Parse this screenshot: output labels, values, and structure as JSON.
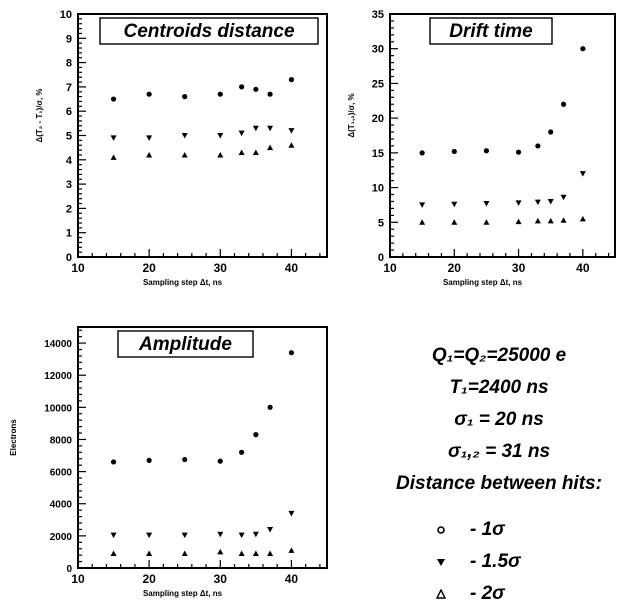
{
  "chart_data": [
    {
      "type": "scatter",
      "title": "Centroids distance",
      "xlabel": "Sampling step Δt, ns",
      "ylabel": "Δ(T₂ - T₁)/σ, %",
      "xlim": [
        10,
        45
      ],
      "ylim": [
        0,
        10
      ],
      "xticks": [
        "10",
        "20",
        "30",
        "40"
      ],
      "yticks": [
        "0",
        "1",
        "2",
        "3",
        "4",
        "5",
        "6",
        "7",
        "8",
        "9",
        "10"
      ],
      "series": [
        {
          "x": [
            15,
            20,
            25,
            30,
            33,
            35,
            37,
            40
          ],
          "y": [
            6.5,
            6.7,
            6.6,
            6.7,
            7.0,
            6.9,
            6.7,
            7.3
          ]
        },
        {
          "x": [
            15,
            20,
            25,
            30,
            33,
            35,
            37,
            40
          ],
          "y": [
            4.9,
            4.9,
            5.0,
            5.0,
            5.1,
            5.3,
            5.3,
            5.2
          ]
        },
        {
          "x": [
            15,
            20,
            25,
            30,
            33,
            35,
            37,
            40
          ],
          "y": [
            4.1,
            4.2,
            4.2,
            4.2,
            4.3,
            4.3,
            4.5,
            4.6
          ]
        }
      ]
    },
    {
      "type": "scatter",
      "title": "Drift time",
      "xlabel": "Sampling step Δt, ns",
      "ylabel": "Δ(T₁,₂)/σ, %",
      "xlim": [
        10,
        45
      ],
      "ylim": [
        0,
        35
      ],
      "xticks": [
        "10",
        "20",
        "30",
        "40"
      ],
      "yticks": [
        "0",
        "5",
        "10",
        "15",
        "20",
        "25",
        "30",
        "35"
      ],
      "series": [
        {
          "x": [
            15,
            20,
            25,
            30,
            33,
            35,
            37,
            40
          ],
          "y": [
            15,
            15.2,
            15.3,
            15.1,
            16,
            18,
            22,
            30
          ]
        },
        {
          "x": [
            15,
            20,
            25,
            30,
            33,
            35,
            37,
            40
          ],
          "y": [
            7.5,
            7.6,
            7.7,
            7.8,
            7.9,
            8,
            8.6,
            12
          ]
        },
        {
          "x": [
            15,
            20,
            25,
            30,
            33,
            35,
            37,
            40
          ],
          "y": [
            5,
            5,
            5,
            5.1,
            5.2,
            5.2,
            5.3,
            5.5
          ]
        }
      ]
    },
    {
      "type": "scatter",
      "title": "Amplitude",
      "xlabel": "Sampling step Δt, ns",
      "ylabel": "Electrons",
      "xlim": [
        10,
        45
      ],
      "ylim": [
        0,
        15000
      ],
      "xticks": [
        "10",
        "20",
        "30",
        "40"
      ],
      "yticks": [
        "0",
        "2000",
        "4000",
        "6000",
        "8000",
        "10000",
        "12000",
        "14000"
      ],
      "series": [
        {
          "x": [
            15,
            20,
            25,
            30,
            33,
            35,
            37,
            40
          ],
          "y": [
            6600,
            6700,
            6750,
            6650,
            7200,
            8300,
            10000,
            13400
          ]
        },
        {
          "x": [
            15,
            20,
            25,
            30,
            33,
            35,
            37,
            40
          ],
          "y": [
            2050,
            2050,
            2050,
            2100,
            2050,
            2100,
            2400,
            3400
          ]
        },
        {
          "x": [
            15,
            20,
            25,
            30,
            33,
            35,
            37,
            40
          ],
          "y": [
            900,
            900,
            900,
            1000,
            900,
            900,
            900,
            1100
          ]
        }
      ]
    }
  ],
  "info_lines": [
    "Q₁=Q₂=25000 e",
    "T₁=2400 ns",
    "σ₁ = 20 ns",
    "σ₁,₂ = 31 ns",
    "Distance between hits:"
  ],
  "legend": [
    {
      "marker": "circle",
      "label": "- 1σ"
    },
    {
      "marker": "triangle-down",
      "label": "- 1.5σ"
    },
    {
      "marker": "triangle-up",
      "label": "- 2σ"
    }
  ]
}
